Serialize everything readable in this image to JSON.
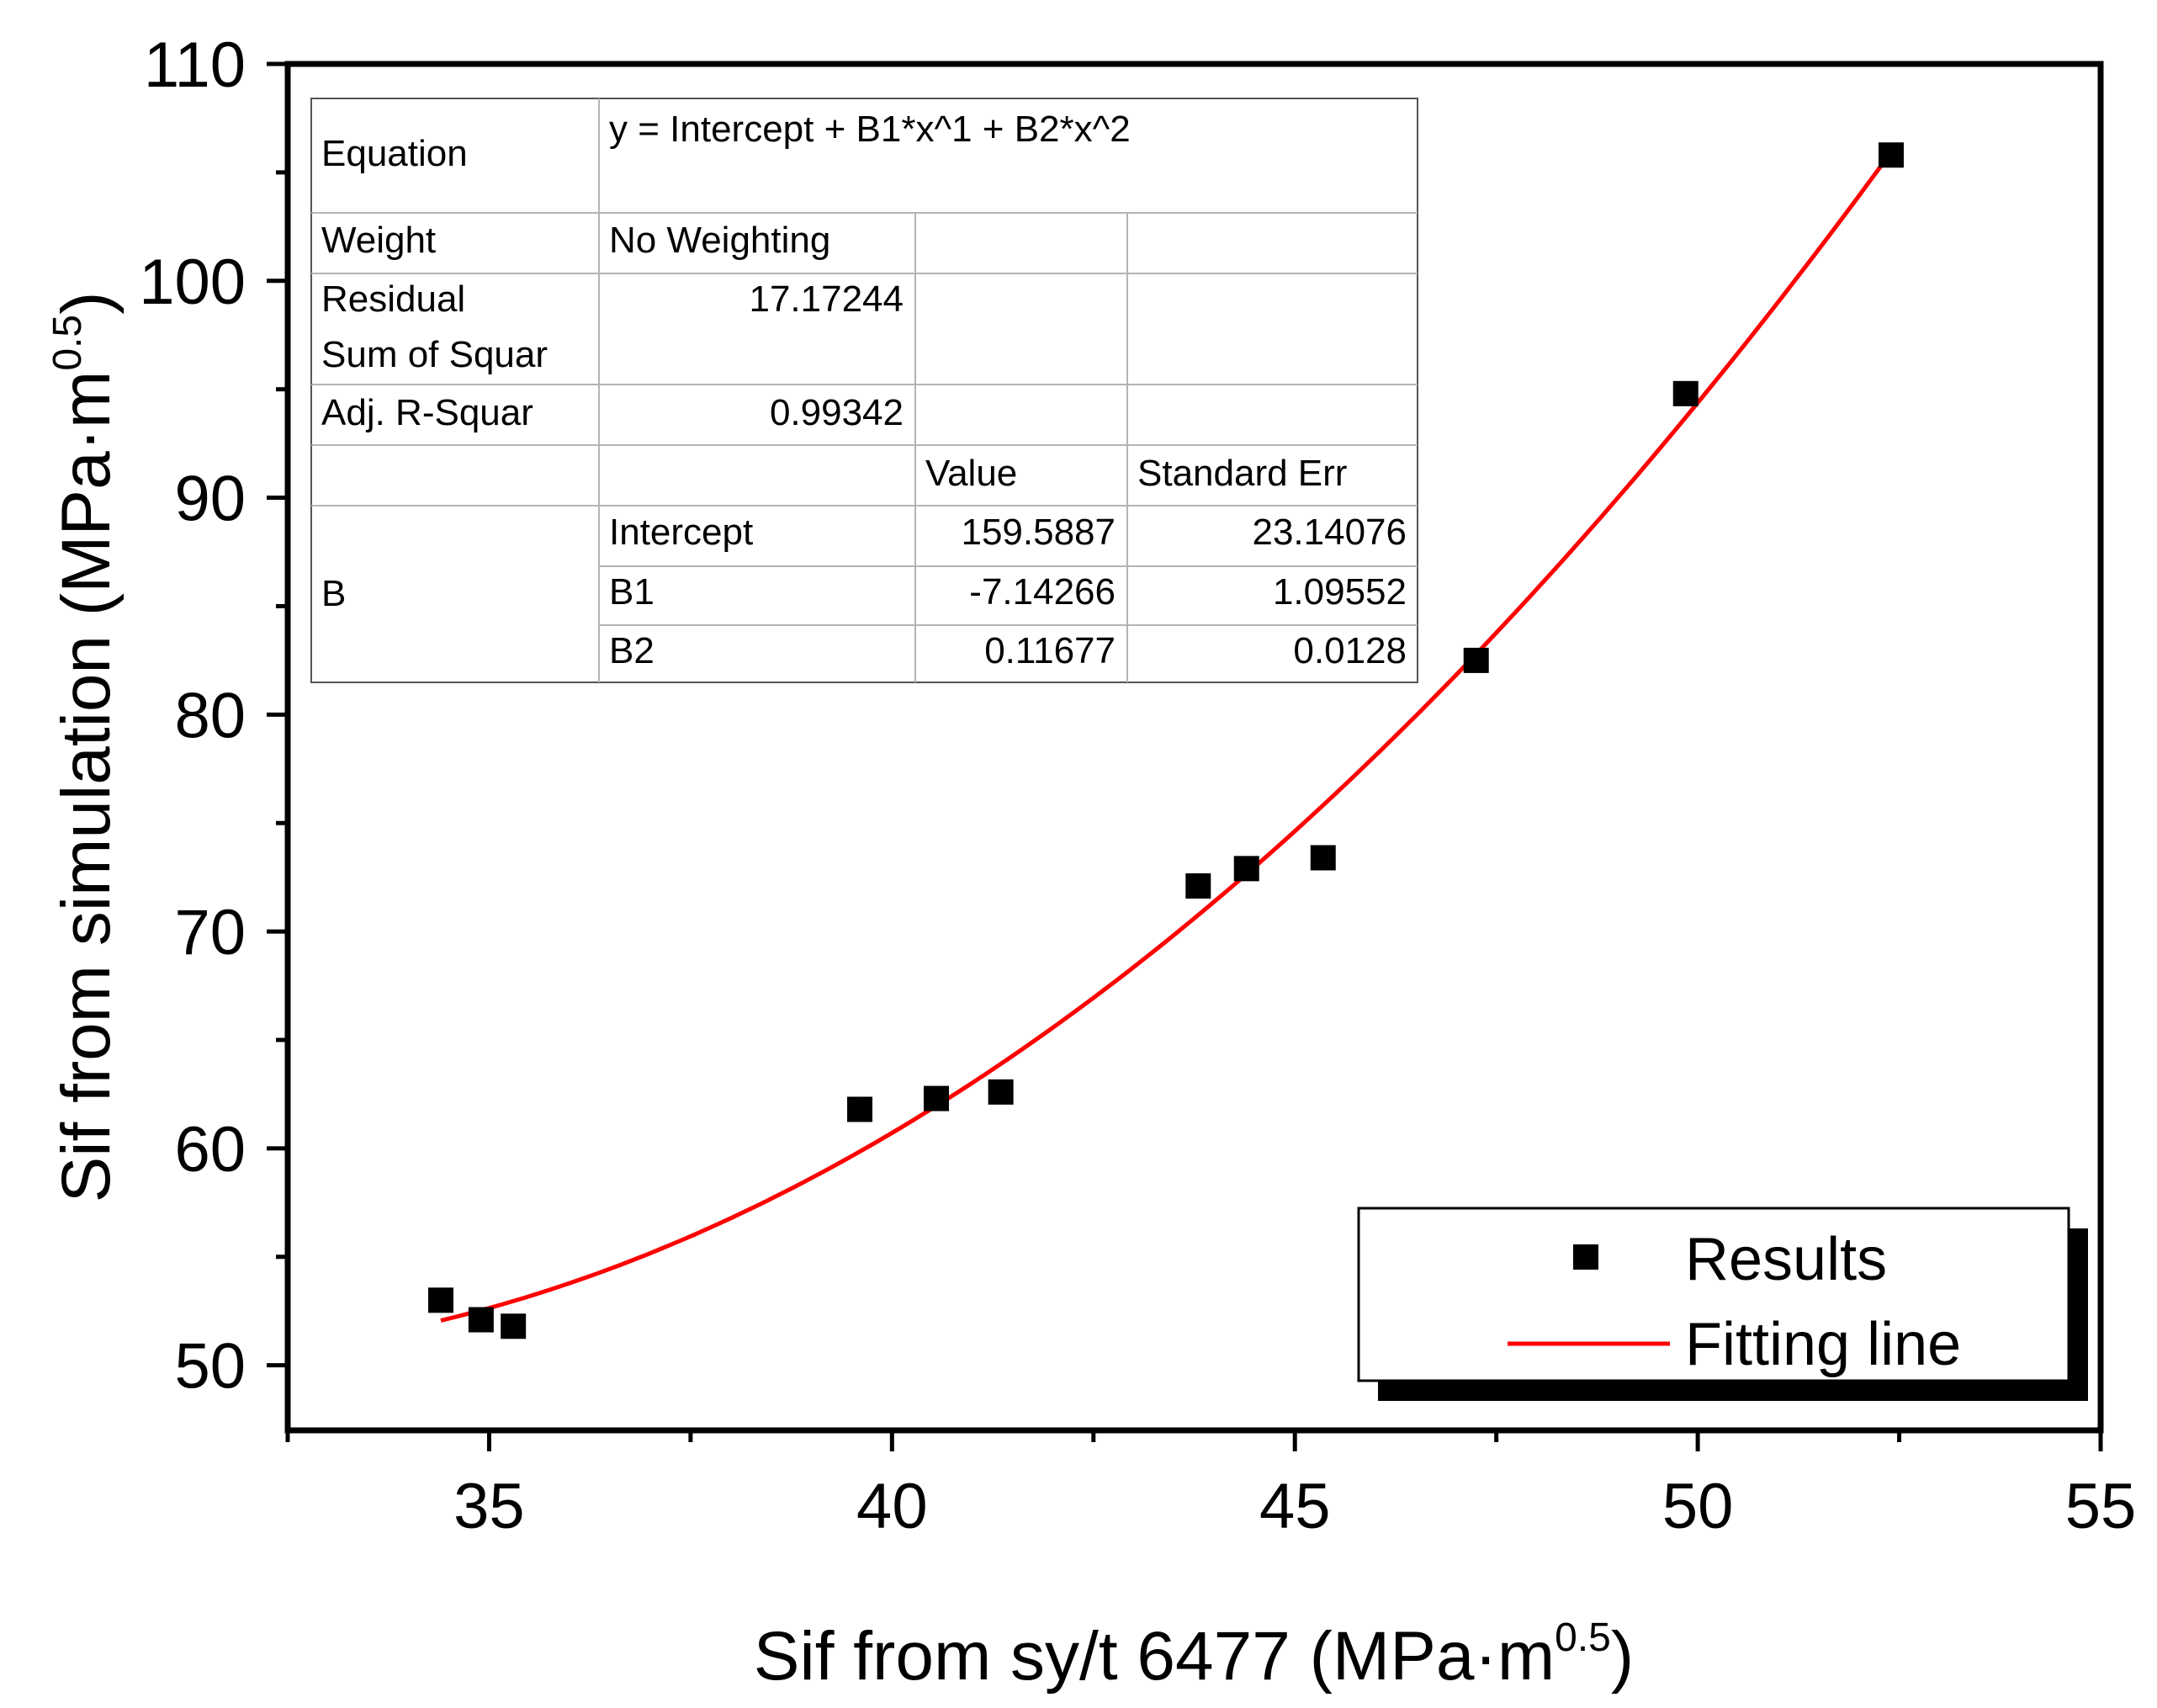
{
  "chart_data": {
    "type": "scatter",
    "title": "",
    "xlabel": {
      "prefix": "Sif from sy/t 6477 (MPa·m",
      "sup": "0.5",
      "suffix": ")"
    },
    "ylabel": {
      "prefix": "Sif from simulation (MPa·m",
      "sup": "0.5",
      "suffix": ")"
    },
    "xlim": [
      32.5,
      55
    ],
    "ylim": [
      47,
      110
    ],
    "x_ticks": [
      35,
      40,
      45,
      50,
      55
    ],
    "y_ticks": [
      50,
      60,
      70,
      80,
      90,
      100,
      110
    ],
    "series": [
      {
        "name": "Results",
        "kind": "scatter",
        "marker": "square",
        "color": "#000000",
        "points": [
          [
            34.4,
            53.0
          ],
          [
            34.9,
            52.1
          ],
          [
            35.3,
            51.8
          ],
          [
            39.6,
            61.8
          ],
          [
            40.55,
            62.3
          ],
          [
            41.35,
            62.6
          ],
          [
            43.8,
            72.1
          ],
          [
            44.4,
            72.9
          ],
          [
            45.35,
            73.4
          ],
          [
            47.25,
            82.5
          ],
          [
            49.85,
            94.8
          ],
          [
            52.4,
            105.8
          ]
        ]
      },
      {
        "name": "Fitting line",
        "kind": "line",
        "color": "#ff0000",
        "equation": {
          "intercept": 159.5887,
          "b1": -7.14266,
          "b2": 0.11677
        },
        "x_range": [
          34.4,
          52.4
        ]
      }
    ],
    "legend": {
      "placement": "bottom-right",
      "entries": [
        "Results",
        "Fitting line"
      ]
    },
    "fit_table": {
      "equation_label": "Equation",
      "equation_text": "y = Intercept + B1*x^1 + B2*x^2",
      "weight_label": "Weight",
      "weight_value": "No Weighting",
      "rss_label_line1": "Residual",
      "rss_label_line2": "Sum of Squar",
      "rss_value": "17.17244",
      "adj_label": "Adj. R-Squar",
      "adj_value": "0.99342",
      "value_header": "Value",
      "stderr_header": "Standard Err",
      "param_group": "B",
      "params": [
        {
          "name": "Intercept",
          "value": "159.5887",
          "err": "23.14076"
        },
        {
          "name": "B1",
          "value": "-7.14266",
          "err": "1.09552"
        },
        {
          "name": "B2",
          "value": "0.11677",
          "err": "0.0128"
        }
      ]
    }
  }
}
